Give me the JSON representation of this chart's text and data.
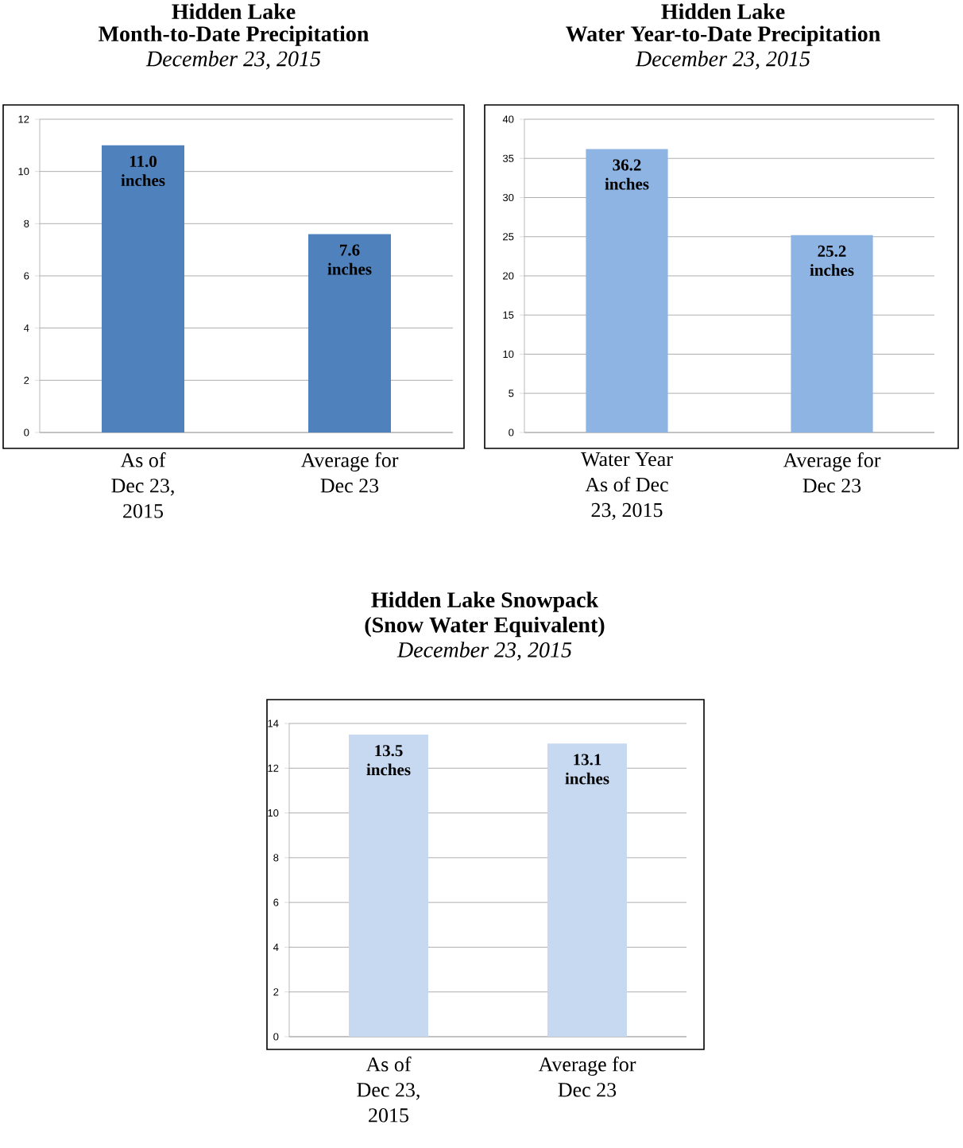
{
  "chart_data": [
    {
      "type": "bar",
      "title": "Hidden Lake",
      "subtitle": "Month-to-Date Precipitation",
      "annotations": [
        "December 23, 2015"
      ],
      "categories": [
        "As of Dec 23, 2015",
        "Average for Dec 23"
      ],
      "values": [
        11.0,
        7.6
      ],
      "value_labels": [
        "11.0 inches",
        "7.6 inches"
      ],
      "color": "#4f81bd",
      "ylim": [
        0,
        12
      ],
      "yticks": [
        0,
        2,
        4,
        6,
        8,
        10,
        12
      ],
      "grid": "y"
    },
    {
      "type": "bar",
      "title": "Hidden Lake",
      "subtitle": "Water Year-to-Date Precipitation",
      "annotations": [
        "December 23, 2015"
      ],
      "categories": [
        "Water Year As of Dec 23, 2015",
        "Average for Dec 23"
      ],
      "values": [
        36.2,
        25.2
      ],
      "value_labels": [
        "36.2 inches",
        "25.2 inches"
      ],
      "color": "#8eb4e3",
      "ylim": [
        0,
        40
      ],
      "yticks": [
        0,
        5,
        10,
        15,
        20,
        25,
        30,
        35,
        40
      ],
      "grid": "y"
    },
    {
      "type": "bar",
      "title": "Hidden Lake Snowpack",
      "subtitle": "(Snow Water Equivalent)",
      "annotations": [
        "December 23, 2015"
      ],
      "categories": [
        "As of Dec 23, 2015",
        "Average for Dec 23"
      ],
      "values": [
        13.5,
        13.1
      ],
      "value_labels": [
        "13.5 inches",
        "13.1 inches"
      ],
      "color": "#c6d9f1",
      "ylim": [
        0,
        14
      ],
      "yticks": [
        0,
        2,
        4,
        6,
        8,
        10,
        12,
        14
      ],
      "grid": "y"
    }
  ]
}
